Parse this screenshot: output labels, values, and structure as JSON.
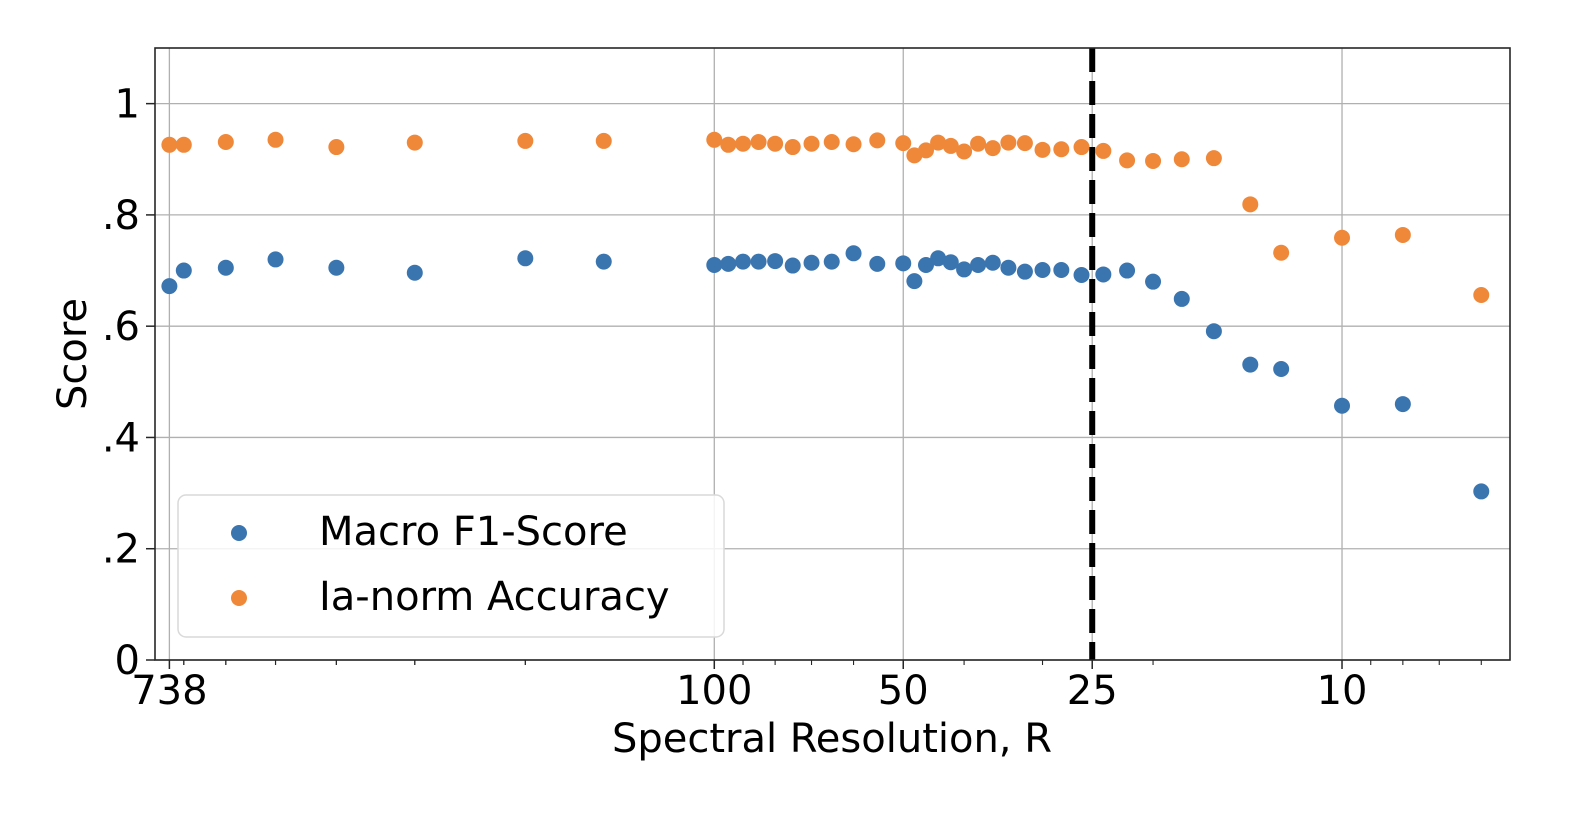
{
  "chart_data": {
    "type": "scatter",
    "title": "",
    "xlabel": "Spectral Resolution, R",
    "ylabel": "Score",
    "x_scale": "log-reversed",
    "xlim": [
      778,
      5.4
    ],
    "ylim": [
      0,
      1.1
    ],
    "grid": true,
    "x_ticks": [
      {
        "value": 738,
        "label": "738"
      },
      {
        "value": 100,
        "label": "100"
      },
      {
        "value": 50,
        "label": "50"
      },
      {
        "value": 25,
        "label": "25"
      },
      {
        "value": 10,
        "label": "10"
      }
    ],
    "x_gridlines": [
      738,
      100,
      50,
      25,
      10
    ],
    "y_ticks": [
      {
        "value": 0,
        "label": "0"
      },
      {
        "value": 0.2,
        "label": ".2"
      },
      {
        "value": 0.4,
        "label": ".4"
      },
      {
        "value": 0.6,
        "label": ".6"
      },
      {
        "value": 0.8,
        "label": ".8"
      },
      {
        "value": 1.0,
        "label": "1"
      }
    ],
    "reference_line": {
      "x": 25,
      "style": "dashed",
      "color": "#000000"
    },
    "legend": {
      "position": "lower-left"
    },
    "series": [
      {
        "name": "Macro F1-Score",
        "color": "#3a75b0",
        "points": [
          [
            738,
            0.672
          ],
          [
            700,
            0.7
          ],
          [
            600,
            0.705
          ],
          [
            500,
            0.72
          ],
          [
            400,
            0.705
          ],
          [
            300,
            0.696
          ],
          [
            200,
            0.722
          ],
          [
            150,
            0.716
          ],
          [
            100,
            0.71
          ],
          [
            95,
            0.712
          ],
          [
            90,
            0.716
          ],
          [
            85,
            0.716
          ],
          [
            80,
            0.717
          ],
          [
            75,
            0.709
          ],
          [
            70,
            0.714
          ],
          [
            65,
            0.716
          ],
          [
            60,
            0.731
          ],
          [
            55,
            0.712
          ],
          [
            50,
            0.713
          ],
          [
            48,
            0.681
          ],
          [
            46,
            0.71
          ],
          [
            44,
            0.722
          ],
          [
            42,
            0.715
          ],
          [
            40,
            0.702
          ],
          [
            38,
            0.71
          ],
          [
            36,
            0.714
          ],
          [
            34,
            0.705
          ],
          [
            32,
            0.698
          ],
          [
            30,
            0.701
          ],
          [
            28,
            0.701
          ],
          [
            26,
            0.692
          ],
          [
            24,
            0.693
          ],
          [
            22,
            0.7
          ],
          [
            20,
            0.68
          ],
          [
            18,
            0.649
          ],
          [
            16,
            0.591
          ],
          [
            14,
            0.531
          ],
          [
            12.5,
            0.523
          ],
          [
            10,
            0.457
          ],
          [
            8,
            0.46
          ],
          [
            6,
            0.303
          ]
        ]
      },
      {
        "name": "Ia-norm Accuracy",
        "color": "#f0883a",
        "points": [
          [
            738,
            0.926
          ],
          [
            700,
            0.926
          ],
          [
            600,
            0.931
          ],
          [
            500,
            0.935
          ],
          [
            400,
            0.922
          ],
          [
            300,
            0.93
          ],
          [
            200,
            0.933
          ],
          [
            150,
            0.933
          ],
          [
            100,
            0.935
          ],
          [
            95,
            0.926
          ],
          [
            90,
            0.928
          ],
          [
            85,
            0.931
          ],
          [
            80,
            0.928
          ],
          [
            75,
            0.922
          ],
          [
            70,
            0.928
          ],
          [
            65,
            0.931
          ],
          [
            60,
            0.927
          ],
          [
            55,
            0.934
          ],
          [
            50,
            0.929
          ],
          [
            48,
            0.907
          ],
          [
            46,
            0.916
          ],
          [
            44,
            0.93
          ],
          [
            42,
            0.924
          ],
          [
            40,
            0.914
          ],
          [
            38,
            0.928
          ],
          [
            36,
            0.92
          ],
          [
            34,
            0.93
          ],
          [
            32,
            0.929
          ],
          [
            30,
            0.917
          ],
          [
            28,
            0.918
          ],
          [
            26,
            0.922
          ],
          [
            24,
            0.915
          ],
          [
            22,
            0.898
          ],
          [
            20,
            0.897
          ],
          [
            18,
            0.9
          ],
          [
            16,
            0.902
          ],
          [
            14,
            0.819
          ],
          [
            12.5,
            0.732
          ],
          [
            10,
            0.759
          ],
          [
            8,
            0.764
          ],
          [
            6,
            0.656
          ]
        ]
      }
    ]
  }
}
